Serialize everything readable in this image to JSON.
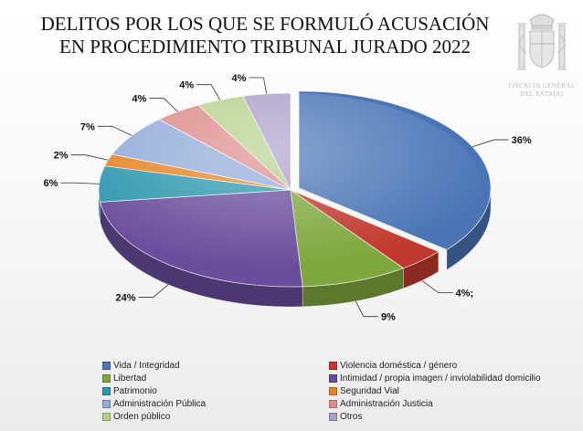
{
  "chart_data": {
    "type": "pie",
    "title": [
      "DELITOS POR LOS QUE SE FORMULÓ ACUSACIÓN",
      "EN PROCEDIMIENTO TRIBUNAL JURADO 2022"
    ],
    "legend_position": "bottom",
    "series": [
      {
        "name": "Vida / Integridad",
        "value": 36,
        "label": "36%",
        "color": "#4a74b5"
      },
      {
        "name": "Violencia doméstica / género",
        "value": 4,
        "label": "4%;",
        "color": "#c0392e"
      },
      {
        "name": "Libertad",
        "value": 9,
        "label": "9%",
        "color": "#7fa73e"
      },
      {
        "name": "Intimidad / propia imagen / inviolabilidad domicilio",
        "value": 24,
        "label": "24%",
        "color": "#6a4e9b"
      },
      {
        "name": "Patrimonio",
        "value": 6,
        "label": "6%",
        "color": "#2e97ae"
      },
      {
        "name": "Seguridad Vial",
        "value": 2,
        "label": "2%",
        "color": "#e58423"
      },
      {
        "name": "Administración Pública",
        "value": 7,
        "label": "7%",
        "color": "#93acd8"
      },
      {
        "name": "Administración Justicia",
        "value": 4,
        "label": "4%",
        "color": "#dc8b8a"
      },
      {
        "name": "Orden público",
        "value": 4,
        "label": "4%",
        "color": "#b6d18c"
      },
      {
        "name": "Otros",
        "value": 4,
        "label": "4%",
        "color": "#aa9fc9"
      }
    ]
  },
  "logo": {
    "caption_line1": "FISCALÍA GENERAL",
    "caption_line2": "DEL ESTADO"
  }
}
